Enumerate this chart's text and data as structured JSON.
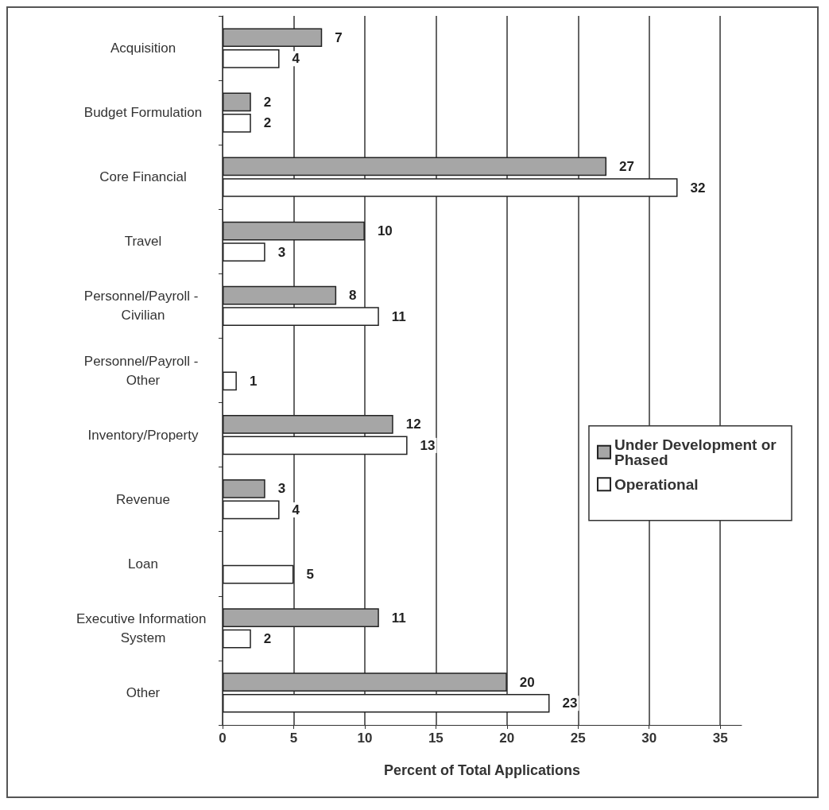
{
  "chart_data": {
    "type": "bar",
    "orientation": "horizontal",
    "categories": [
      "Acquisition",
      "Budget Formulation",
      "Core Financial",
      "Travel",
      "Personnel/Payroll - Civilian",
      "Personnel/Payroll - Other",
      "Inventory/Property",
      "Revenue",
      "Loan",
      "Executive Information System",
      "Other"
    ],
    "series": [
      {
        "name": "Under Development or Phased",
        "color": "#a6a6a6",
        "values": [
          7,
          2,
          27,
          10,
          8,
          null,
          12,
          3,
          null,
          11,
          20
        ]
      },
      {
        "name": "Operational",
        "color": "#ffffff",
        "values": [
          4,
          2,
          32,
          3,
          11,
          1,
          13,
          4,
          5,
          2,
          23
        ]
      }
    ],
    "xlabel": "Percent of Total Applications",
    "xlim": [
      0,
      36.5
    ],
    "xticks": [
      0,
      5,
      10,
      15,
      20,
      25,
      30,
      35
    ],
    "grid": "x",
    "legend": "right",
    "data_labels": true
  }
}
